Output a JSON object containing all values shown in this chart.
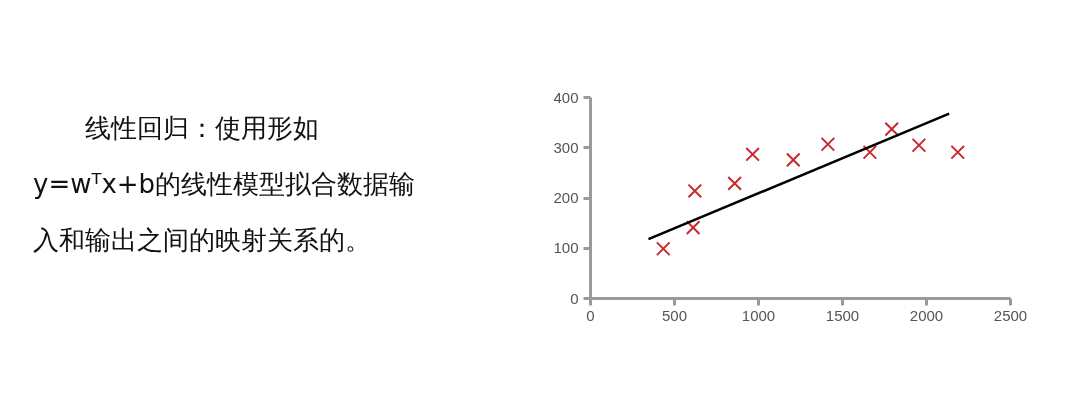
{
  "chart_data": {
    "type": "scatter",
    "annotations": [
      "线性回归：使用形如y=wᵀx+b的线性模型拟合数据输入和输出之间的映射关系的。"
    ],
    "series": [
      {
        "marker": "cross",
        "color": "#c8282e",
        "x": [
          433,
          611,
          621,
          858,
          965,
          1207,
          1413,
          1663,
          1793,
          1955,
          2186
        ],
        "values": [
          99,
          141,
          214,
          229,
          287,
          276,
          307,
          291,
          337,
          305,
          291
        ]
      },
      {
        "type": "line",
        "color": "#000000",
        "x": [
          345,
          2135
        ],
        "values": [
          118,
          368
        ]
      }
    ],
    "xlim": [
      0,
      2500
    ],
    "xticks": [
      0,
      500,
      1000,
      1500,
      2000,
      2500
    ],
    "ylim": [
      0,
      400
    ],
    "yticks": [
      0,
      100,
      200,
      300,
      400
    ],
    "grid": false
  }
}
